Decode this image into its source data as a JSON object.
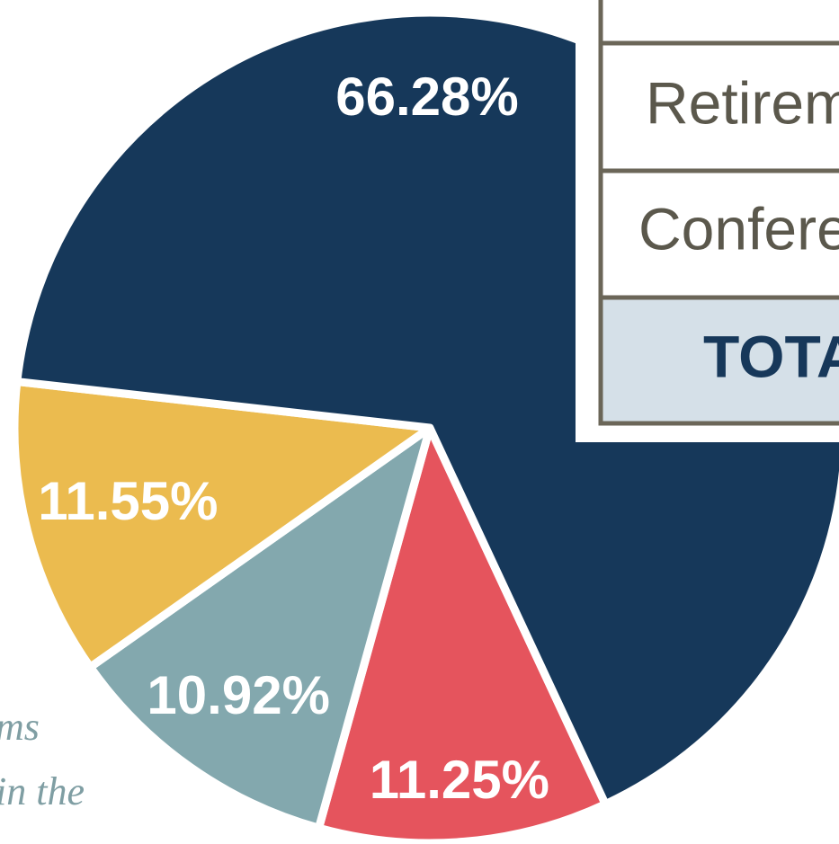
{
  "chart_data": {
    "type": "pie",
    "values": [
      11.25,
      10.92,
      11.55,
      66.28
    ],
    "value_labels": [
      "11.25%",
      "10.92%",
      "11.55%",
      "66.28%"
    ],
    "colors": [
      "#e5545d",
      "#83a8ae",
      "#ebbb4f",
      "#16385a"
    ]
  },
  "table": {
    "rows": [
      "Retirem",
      "Confere"
    ],
    "total": "TOTA"
  },
  "background_text": [
    "ms",
    "in the"
  ]
}
